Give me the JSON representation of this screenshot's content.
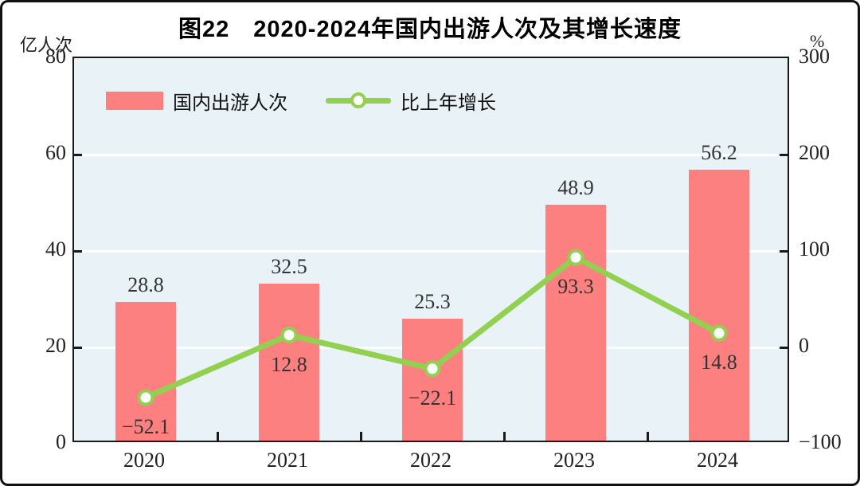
{
  "title": "图22　2020-2024年国内出游人次及其增长速度",
  "left_axis": {
    "unit": "亿人次",
    "min": 0,
    "max": 80,
    "ticks": [
      0,
      20,
      40,
      60,
      80
    ]
  },
  "right_axis": {
    "unit": "%",
    "min": -100,
    "max": 300,
    "ticks": [
      -100,
      0,
      100,
      200,
      300
    ]
  },
  "legend": [
    {
      "label": "国内出游人次",
      "type": "bar",
      "color": "#fc8080"
    },
    {
      "label": "比上年增长",
      "type": "line",
      "color": "#92d050"
    }
  ],
  "colors": {
    "bar": "#fc8080",
    "line": "#92d050",
    "marker_fill": "#ffffff",
    "plot_background": "#e9f2f7",
    "gridline": "#ffffff",
    "frame": "#1a1a1a",
    "label_text": "#333333"
  },
  "chart_data": {
    "type": "bar",
    "subtype": "bar-line-combo",
    "title": "图22　2020-2024年国内出游人次及其增长速度",
    "categories": [
      "2020",
      "2021",
      "2022",
      "2023",
      "2024"
    ],
    "series": [
      {
        "name": "国内出游人次",
        "type": "bar",
        "axis": "left",
        "color": "#fc8080",
        "values": [
          28.8,
          32.5,
          25.3,
          48.9,
          56.2
        ]
      },
      {
        "name": "比上年增长",
        "type": "line",
        "axis": "right",
        "color": "#92d050",
        "values": [
          -52.1,
          12.8,
          -22.1,
          93.3,
          14.8
        ]
      }
    ],
    "ylabel_left": "亿人次",
    "ylabel_right": "%",
    "ylim_left": [
      0,
      80
    ],
    "ylim_right": [
      -100,
      300
    ],
    "grid": true,
    "legend_position": "top-left-inside"
  }
}
